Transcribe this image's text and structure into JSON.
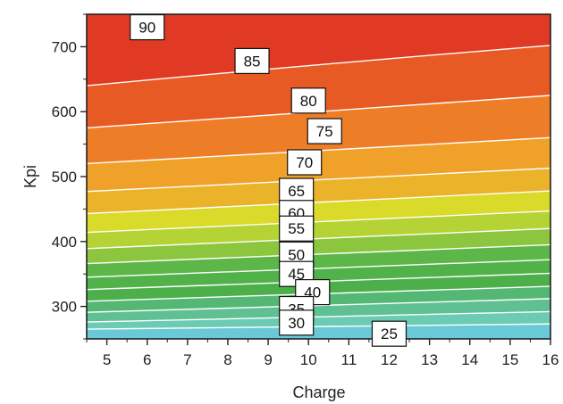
{
  "chart_data": {
    "type": "contour",
    "xlabel": "Charge",
    "ylabel": "Kpi",
    "xlim": [
      4.5,
      16
    ],
    "ylim": [
      250,
      750
    ],
    "x_ticks": [
      5,
      6,
      7,
      8,
      9,
      10,
      11,
      12,
      13,
      14,
      15,
      16
    ],
    "y_ticks": [
      300,
      400,
      500,
      600,
      700
    ],
    "grid": false,
    "contour_levels": [
      25,
      30,
      35,
      40,
      45,
      50,
      55,
      60,
      65,
      70,
      75,
      80,
      85,
      90
    ],
    "contour_lines": [
      {
        "level": 25,
        "points": [
          [
            4.5,
            265
          ],
          [
            10,
            268
          ],
          [
            16,
            273
          ]
        ]
      },
      {
        "level": 30,
        "points": [
          [
            4.5,
            276
          ],
          [
            10,
            283
          ],
          [
            16,
            292
          ]
        ]
      },
      {
        "level": 35,
        "points": [
          [
            4.5,
            291
          ],
          [
            10,
            300
          ],
          [
            16,
            312
          ]
        ]
      },
      {
        "level": 40,
        "points": [
          [
            4.5,
            308
          ],
          [
            10,
            318
          ],
          [
            16,
            331
          ]
        ]
      },
      {
        "level": 45,
        "points": [
          [
            4.5,
            326
          ],
          [
            10,
            337
          ],
          [
            16,
            351
          ]
        ]
      },
      {
        "level": 50,
        "points": [
          [
            4.5,
            345
          ],
          [
            10,
            358
          ],
          [
            16,
            372
          ]
        ]
      },
      {
        "level": 55,
        "points": [
          [
            4.5,
            366
          ],
          [
            10,
            380
          ],
          [
            16,
            395
          ]
        ]
      },
      {
        "level": 60,
        "points": [
          [
            4.5,
            389
          ],
          [
            10,
            404
          ],
          [
            16,
            420
          ]
        ]
      },
      {
        "level": 65,
        "points": [
          [
            4.5,
            414
          ],
          [
            10,
            430
          ],
          [
            16,
            447
          ]
        ]
      },
      {
        "level": 70,
        "points": [
          [
            4.5,
            443
          ],
          [
            10,
            460
          ],
          [
            16,
            478
          ]
        ]
      },
      {
        "level": 75,
        "points": [
          [
            4.5,
            477
          ],
          [
            10,
            495
          ],
          [
            16,
            513
          ]
        ]
      },
      {
        "level": 80,
        "points": [
          [
            4.5,
            520
          ],
          [
            10,
            540
          ],
          [
            16,
            560
          ]
        ]
      },
      {
        "level": 85,
        "points": [
          [
            4.5,
            575
          ],
          [
            10,
            600
          ],
          [
            16,
            625
          ]
        ]
      },
      {
        "level": 90,
        "points": [
          [
            4.5,
            640
          ],
          [
            10,
            672
          ],
          [
            16,
            702
          ]
        ]
      }
    ],
    "contour_labels": [
      {
        "text": "90",
        "x": 6.0,
        "y": 730
      },
      {
        "text": "85",
        "x": 8.6,
        "y": 678
      },
      {
        "text": "80",
        "x": 10.0,
        "y": 617
      },
      {
        "text": "75",
        "x": 10.4,
        "y": 570
      },
      {
        "text": "70",
        "x": 9.9,
        "y": 522
      },
      {
        "text": "65",
        "x": 9.7,
        "y": 478
      },
      {
        "text": "60",
        "x": 9.7,
        "y": 444
      },
      {
        "text": "55",
        "x": 9.7,
        "y": 420
      },
      {
        "text": "50",
        "x": 9.7,
        "y": 380
      },
      {
        "text": "45",
        "x": 9.7,
        "y": 350
      },
      {
        "text": "40",
        "x": 10.1,
        "y": 322
      },
      {
        "text": "35",
        "x": 9.7,
        "y": 296
      },
      {
        "text": "30",
        "x": 9.7,
        "y": 275
      },
      {
        "text": "25",
        "x": 12.0,
        "y": 258
      }
    ],
    "colors": [
      "#6ac9d7",
      "#6ccbb3",
      "#5fc093",
      "#54b874",
      "#4daf4a",
      "#52b24a",
      "#5db648",
      "#8cc63f",
      "#b5d334",
      "#d9da2a",
      "#eab32a",
      "#f0a12a",
      "#ee7d27",
      "#e85a24",
      "#e03a25"
    ]
  }
}
